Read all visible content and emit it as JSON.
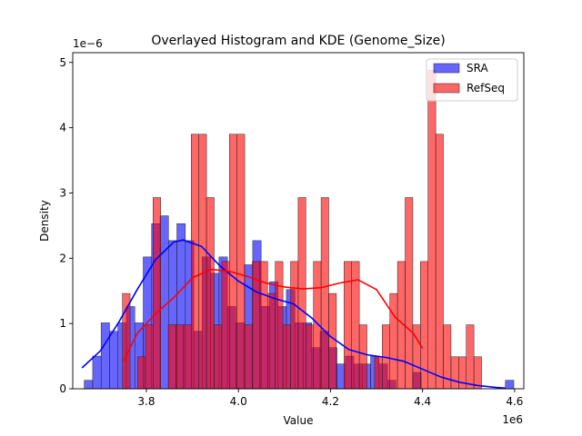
{
  "chart_data": {
    "type": "histogram",
    "title": "Overlayed Histogram and KDE (Genome_Size)",
    "xlabel": "Value",
    "ylabel": "Density",
    "x_offset_label": "1e6",
    "y_offset_label": "1e−6",
    "xlim": [
      3.64,
      4.62
    ],
    "ylim": [
      0,
      5.15
    ],
    "x_ticks": [
      3.8,
      4.0,
      4.2,
      4.4,
      4.6
    ],
    "x_tick_labels": [
      "3.8",
      "4.0",
      "4.2",
      "4.4",
      "4.6"
    ],
    "y_ticks": [
      0,
      1,
      2,
      3,
      4,
      5
    ],
    "y_tick_labels": [
      "0",
      "1",
      "2",
      "3",
      "4",
      "5"
    ],
    "legend": {
      "position": "top-right",
      "entries": [
        "SRA",
        "RefSeq"
      ]
    },
    "series": [
      {
        "name": "SRA",
        "color": "#0000ff",
        "bar_fill": "rgba(0,0,255,0.6)",
        "bin_start": 3.665,
        "bin_width": 0.0183,
        "values": [
          0.13,
          0.5,
          1.01,
          0.88,
          1.01,
          1.26,
          1.01,
          2.02,
          2.53,
          2.65,
          2.27,
          2.53,
          2.27,
          0.88,
          2.02,
          1.77,
          2.02,
          1.26,
          1.01,
          1.9,
          2.27,
          1.26,
          1.64,
          1.26,
          1.52,
          1.01,
          1.01,
          0.63,
          0.88,
          0.63,
          0.38,
          0.5,
          0.38,
          0.38,
          0.5,
          0.38,
          0.13,
          0,
          0,
          0.25,
          0,
          0,
          0,
          0,
          0,
          0,
          0,
          0,
          0,
          0,
          0.13
        ],
        "kde": {
          "x": [
            3.66,
            3.7,
            3.74,
            3.78,
            3.82,
            3.86,
            3.88,
            3.92,
            3.96,
            4.0,
            4.04,
            4.08,
            4.12,
            4.16,
            4.2,
            4.24,
            4.28,
            4.32,
            4.36,
            4.4,
            4.44,
            4.48,
            4.52,
            4.56,
            4.58
          ],
          "y": [
            0.32,
            0.58,
            1.02,
            1.52,
            1.98,
            2.25,
            2.28,
            2.18,
            1.88,
            1.65,
            1.48,
            1.38,
            1.3,
            1.08,
            0.8,
            0.6,
            0.52,
            0.48,
            0.42,
            0.3,
            0.18,
            0.1,
            0.05,
            0.02,
            0.01
          ]
        }
      },
      {
        "name": "RefSeq",
        "color": "#ff0000",
        "bar_fill": "rgba(255,0,0,0.6)",
        "bin_start": 3.748,
        "bin_width": 0.0166,
        "values": [
          1.46,
          0,
          0.49,
          0.98,
          2.93,
          0,
          0.98,
          0.98,
          0.98,
          3.9,
          3.9,
          2.93,
          0.98,
          1.95,
          3.9,
          3.9,
          0.98,
          1.95,
          1.95,
          1.46,
          1.95,
          0.98,
          1.95,
          2.93,
          0.98,
          1.95,
          2.93,
          1.46,
          0,
          1.95,
          1.95,
          0.98,
          0,
          0.49,
          0.98,
          1.46,
          1.95,
          2.93,
          0.98,
          1.95,
          4.88,
          3.9,
          0.98,
          0.49,
          0.49,
          0.98,
          0.49
        ],
        "kde": {
          "x": [
            3.75,
            3.78,
            3.82,
            3.86,
            3.9,
            3.94,
            3.98,
            4.02,
            4.06,
            4.1,
            4.14,
            4.18,
            4.22,
            4.26,
            4.3,
            4.34,
            4.38,
            4.4
          ],
          "y": [
            0.42,
            0.85,
            1.15,
            1.4,
            1.7,
            1.83,
            1.8,
            1.72,
            1.62,
            1.56,
            1.53,
            1.55,
            1.62,
            1.67,
            1.52,
            1.1,
            0.85,
            0.62
          ]
        }
      }
    ]
  }
}
